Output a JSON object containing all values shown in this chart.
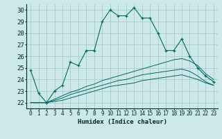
{
  "xlabel": "Humidex (Indice chaleur)",
  "bg_color": "#cce8e8",
  "grid_color": "#aacaca",
  "line_color": "#006868",
  "xlim": [
    -0.5,
    23.5
  ],
  "ylim": [
    21.5,
    30.5
  ],
  "yticks": [
    22,
    23,
    24,
    25,
    26,
    27,
    28,
    29,
    30
  ],
  "xticks": [
    0,
    1,
    2,
    3,
    4,
    5,
    6,
    7,
    8,
    9,
    10,
    11,
    12,
    13,
    14,
    15,
    16,
    17,
    18,
    19,
    20,
    21,
    22,
    23
  ],
  "main_line": [
    24.8,
    22.8,
    22.0,
    23.0,
    23.5,
    25.5,
    25.2,
    26.5,
    26.5,
    29.0,
    30.0,
    29.5,
    29.5,
    30.2,
    29.3,
    29.3,
    28.0,
    26.5,
    26.5,
    27.5,
    26.0,
    25.0,
    24.3,
    23.8
  ],
  "line2": [
    22.0,
    22.0,
    22.0,
    22.3,
    22.6,
    22.9,
    23.1,
    23.4,
    23.6,
    23.9,
    24.1,
    24.3,
    24.5,
    24.7,
    24.9,
    25.1,
    25.3,
    25.5,
    25.7,
    25.8,
    25.6,
    25.2,
    24.5,
    24.0
  ],
  "line3": [
    22.0,
    22.0,
    22.0,
    22.2,
    22.4,
    22.7,
    22.9,
    23.1,
    23.3,
    23.5,
    23.7,
    23.9,
    24.0,
    24.2,
    24.4,
    24.5,
    24.6,
    24.7,
    24.8,
    24.9,
    24.7,
    24.3,
    23.8,
    23.5
  ],
  "line4": [
    22.0,
    22.0,
    22.0,
    22.1,
    22.2,
    22.4,
    22.6,
    22.8,
    23.0,
    23.2,
    23.4,
    23.5,
    23.6,
    23.7,
    23.9,
    24.0,
    24.1,
    24.2,
    24.3,
    24.4,
    24.2,
    24.0,
    23.7,
    23.5
  ]
}
